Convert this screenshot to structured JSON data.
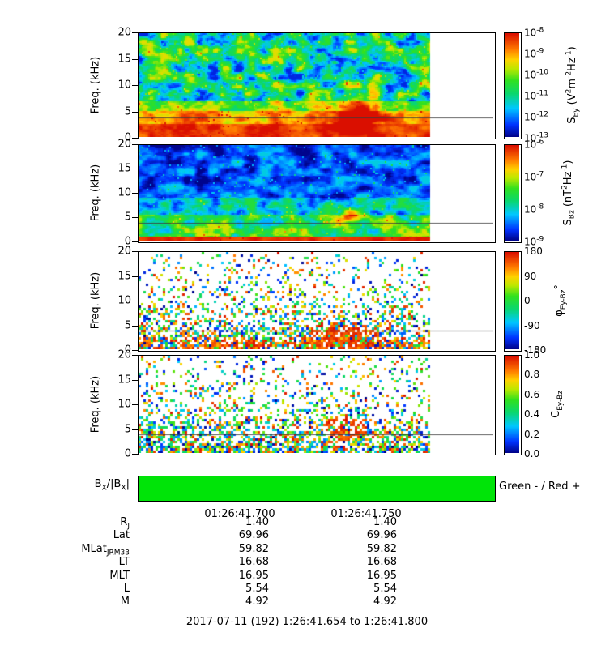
{
  "figure": {
    "bottom_title": "2017-07-11 (192) 1:26:41.654 to 1:26:41.800",
    "time_axis": {
      "tick_labels": [
        "01:26:41.700",
        "01:26:41.750"
      ]
    },
    "direction_bar": {
      "label_rich": [
        {
          "t": "B"
        },
        {
          "t": "X",
          "sub": true
        },
        {
          "t": "/|B"
        },
        {
          "t": "X",
          "sub": true
        },
        {
          "t": "|"
        }
      ],
      "legend": "Green - / Red +",
      "state": "all-green (negative) for entire interval",
      "color": "#00e408"
    }
  },
  "chart_data": [
    {
      "type": "heatmap",
      "id": "sey",
      "ylabel": "Freq. (kHz)",
      "ylim": [
        0,
        20
      ],
      "yticks": [
        20,
        15,
        10,
        5,
        0
      ],
      "overlay_line_khz": 3.8,
      "colorbar": {
        "scale": "log",
        "range": [
          "1e-13",
          "1e-8"
        ],
        "label_rich": [
          {
            "t": "S"
          },
          {
            "t": "Ey",
            "sub": true
          },
          {
            "t": " (V"
          },
          {
            "t": "2",
            "sup": true
          },
          {
            "t": "m"
          },
          {
            "t": "-2",
            "sup": true
          },
          {
            "t": "Hz"
          },
          {
            "t": "-1",
            "sup": true
          },
          {
            "t": ")"
          }
        ],
        "ticks_rich": [
          [
            {
              "t": "10"
            },
            {
              "t": "-8",
              "sup": true
            }
          ],
          [
            {
              "t": "10"
            },
            {
              "t": "-9",
              "sup": true
            }
          ],
          [
            {
              "t": "10"
            },
            {
              "t": "-10",
              "sup": true
            }
          ],
          [
            {
              "t": "10"
            },
            {
              "t": "-11",
              "sup": true
            }
          ],
          [
            {
              "t": "10"
            },
            {
              "t": "-12",
              "sup": true
            }
          ],
          [
            {
              "t": "10"
            },
            {
              "t": "-13",
              "sup": true
            }
          ]
        ]
      },
      "render": {
        "style": "spectrum",
        "seed": 7,
        "bands": [
          {
            "fmax": 2.5,
            "v": 0.93,
            "spread": 0.18
          },
          {
            "fmax": 5.0,
            "v": 0.8,
            "spread": 0.3
          },
          {
            "fmax": 7.0,
            "v": 0.62,
            "spread": 0.42
          },
          {
            "fmax": 20.0,
            "v": 0.4,
            "spread": 0.62
          }
        ],
        "burst": {
          "t": 0.74,
          "f": 4.5,
          "tw": 0.07,
          "fw": 3.5,
          "amp": 0.6
        }
      }
    },
    {
      "type": "heatmap",
      "id": "sbz",
      "ylabel": "Freq. (kHz)",
      "ylim": [
        0,
        20
      ],
      "yticks": [
        20,
        15,
        10,
        5,
        0
      ],
      "overlay_line_khz": 3.8,
      "colorbar": {
        "scale": "log",
        "range": [
          "1e-9",
          "1e-6"
        ],
        "label_rich": [
          {
            "t": "S"
          },
          {
            "t": "Bz",
            "sub": true
          },
          {
            "t": " (nT"
          },
          {
            "t": "2",
            "sup": true
          },
          {
            "t": "Hz"
          },
          {
            "t": "-1",
            "sup": true
          },
          {
            "t": ")"
          }
        ],
        "ticks_rich": [
          [
            {
              "t": "10"
            },
            {
              "t": "-6",
              "sup": true
            }
          ],
          [
            {
              "t": "10"
            },
            {
              "t": "-7",
              "sup": true
            }
          ],
          [
            {
              "t": "10"
            },
            {
              "t": "-8",
              "sup": true
            }
          ],
          [
            {
              "t": "10"
            },
            {
              "t": "-9",
              "sup": true
            }
          ]
        ]
      },
      "render": {
        "style": "spectrum",
        "seed": 13,
        "bands": [
          {
            "fmax": 0.9,
            "v": 0.95,
            "spread": 0.1
          },
          {
            "fmax": 5.5,
            "v": 0.48,
            "spread": 0.45
          },
          {
            "fmax": 9.0,
            "v": 0.3,
            "spread": 0.4
          },
          {
            "fmax": 20.0,
            "v": 0.16,
            "spread": 0.3
          }
        ],
        "burst": {
          "t": 0.72,
          "f": 5.5,
          "tw": 0.05,
          "fw": 1.8,
          "amp": 0.34
        }
      }
    },
    {
      "type": "heatmap",
      "id": "phase",
      "ylabel": "Freq. (kHz)",
      "ylim": [
        0,
        20
      ],
      "yticks": [
        20,
        15,
        10,
        5,
        0
      ],
      "overlay_line_khz": 3.8,
      "colorbar": {
        "scale": "linear",
        "range": [
          -180,
          180
        ],
        "label_rich": [
          {
            "t": "φ"
          },
          {
            "t": "Ey-Bz",
            "sub": true
          },
          {
            "t": "°"
          }
        ],
        "ticks_rich": [
          [
            {
              "t": "180"
            }
          ],
          [
            {
              "t": "90"
            }
          ],
          [
            {
              "t": "0"
            }
          ],
          [
            {
              "t": "-90"
            }
          ],
          [
            {
              "t": "-180"
            }
          ]
        ]
      },
      "render": {
        "style": "scatter",
        "seed": 21,
        "density0": 0.8,
        "falloff": 7,
        "redbias_low": true,
        "burst": {
          "t": 0.7,
          "f": 3.0,
          "tw": 0.1,
          "fw": 2.5,
          "amp": 0.5
        }
      }
    },
    {
      "type": "heatmap",
      "id": "coherence",
      "ylabel": "Freq. (kHz)",
      "ylim": [
        0,
        20
      ],
      "yticks": [
        20,
        15,
        10,
        5,
        0
      ],
      "overlay_line_khz": 3.8,
      "colorbar": {
        "scale": "linear",
        "range": [
          0,
          1
        ],
        "label_rich": [
          {
            "t": "C"
          },
          {
            "t": "Ey-Bz",
            "sub": true
          }
        ],
        "ticks_rich": [
          [
            {
              "t": "1.0"
            }
          ],
          [
            {
              "t": "0.8"
            }
          ],
          [
            {
              "t": "0.6"
            }
          ],
          [
            {
              "t": "0.4"
            }
          ],
          [
            {
              "t": "0.2"
            }
          ],
          [
            {
              "t": "0.0"
            }
          ]
        ]
      },
      "render": {
        "style": "scatter",
        "seed": 33,
        "density0": 0.75,
        "falloff": 8,
        "redbias_low": false,
        "burst": {
          "t": 0.7,
          "f": 5.0,
          "tw": 0.07,
          "fw": 2.0,
          "amp": 0.5
        }
      }
    }
  ],
  "ephemeris": {
    "rows": [
      {
        "key": "rj",
        "label_rich": [
          {
            "t": "R"
          },
          {
            "t": "J",
            "sub": true
          }
        ],
        "values": [
          "1.40",
          "1.40"
        ]
      },
      {
        "key": "lat",
        "label_rich": [
          {
            "t": "Lat"
          }
        ],
        "values": [
          "69.96",
          "69.96"
        ]
      },
      {
        "key": "mlat",
        "label_rich": [
          {
            "t": "MLat"
          },
          {
            "t": "JRM33",
            "sub": true
          }
        ],
        "values": [
          "59.82",
          "59.82"
        ]
      },
      {
        "key": "lt",
        "label_rich": [
          {
            "t": "LT"
          }
        ],
        "values": [
          "16.68",
          "16.68"
        ]
      },
      {
        "key": "mlt",
        "label_rich": [
          {
            "t": "MLT"
          }
        ],
        "values": [
          "16.95",
          "16.95"
        ]
      },
      {
        "key": "l",
        "label_rich": [
          {
            "t": "L"
          }
        ],
        "values": [
          "5.54",
          "5.54"
        ]
      },
      {
        "key": "m",
        "label_rich": [
          {
            "t": "M"
          }
        ],
        "values": [
          "4.92",
          "4.92"
        ]
      }
    ]
  }
}
